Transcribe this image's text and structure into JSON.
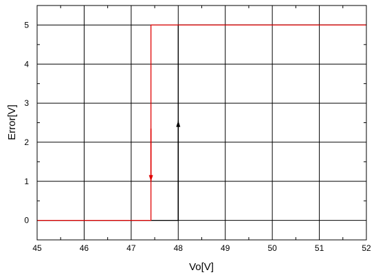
{
  "chart_data": {
    "type": "line",
    "xlabel": "Vo[V]",
    "ylabel": "Error[V]",
    "xlim": [
      45,
      52
    ],
    "ylim": [
      -0.5,
      5.5
    ],
    "x_ticks": [
      "45",
      "46",
      "47",
      "48",
      "49",
      "50",
      "51",
      "52"
    ],
    "y_ticks": [
      "0",
      "1",
      "2",
      "3",
      "4",
      "5"
    ],
    "grid": true,
    "series": [
      {
        "color": "#000000",
        "x": [
          45,
          48.0,
          48.0,
          52
        ],
        "y": [
          0,
          0,
          5,
          5
        ],
        "arrow": {
          "x": 48.0,
          "from_y": 0.0,
          "to_y": 2.55,
          "direction": "up"
        }
      },
      {
        "color": "#e00000",
        "x": [
          45,
          47.42,
          47.42,
          52
        ],
        "y": [
          0,
          0,
          5,
          5
        ],
        "arrow": {
          "x": 47.42,
          "from_y": 2.35,
          "to_y": 1.0,
          "direction": "down"
        }
      }
    ]
  }
}
